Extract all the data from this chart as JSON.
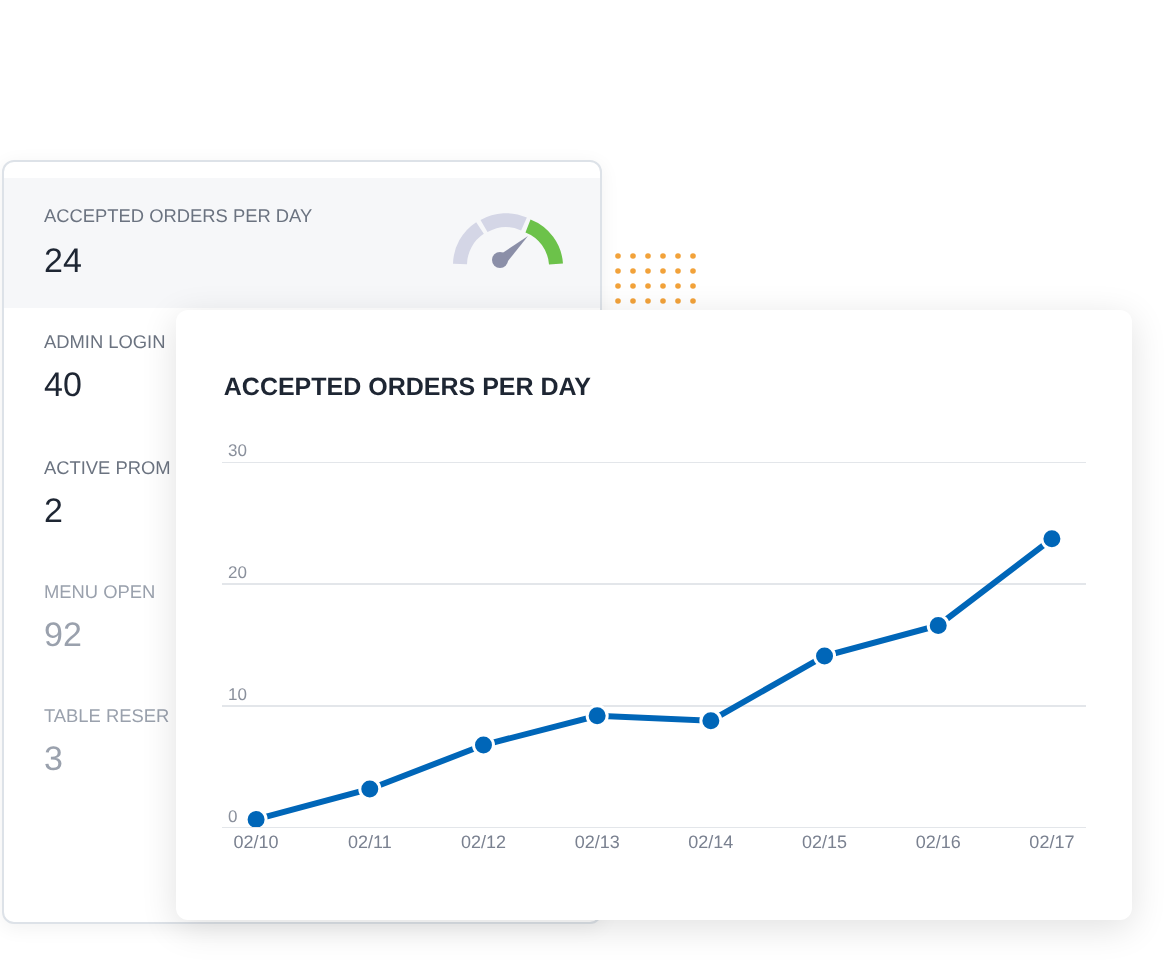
{
  "chart_data": [
    {
      "type": "other",
      "annotations": [
        "ACCEPTED ORDERS PER DAY",
        "24",
        "ADMIN LOGIN",
        "40",
        "ACTIVE PROM",
        "2",
        "MENU OPEN",
        "92",
        "TABLE RESER",
        "3"
      ]
    },
    {
      "type": "line",
      "title": "ACCEPTED ORDERS PER DAY",
      "categories": [
        "02/10",
        "02/11",
        "02/12",
        "02/13",
        "02/14",
        "02/15",
        "02/16",
        "02/17"
      ],
      "series": [
        {
          "color": "#0066b8",
          "values": [
            0.7,
            3.2,
            6.8,
            9.2,
            8.8,
            14.1,
            16.6,
            23.7
          ]
        }
      ],
      "ylim": [
        0,
        30
      ],
      "yticks": [
        0,
        10,
        20,
        30
      ],
      "grid": "y",
      "marker": "circle",
      "line_style": "solid"
    }
  ]
}
